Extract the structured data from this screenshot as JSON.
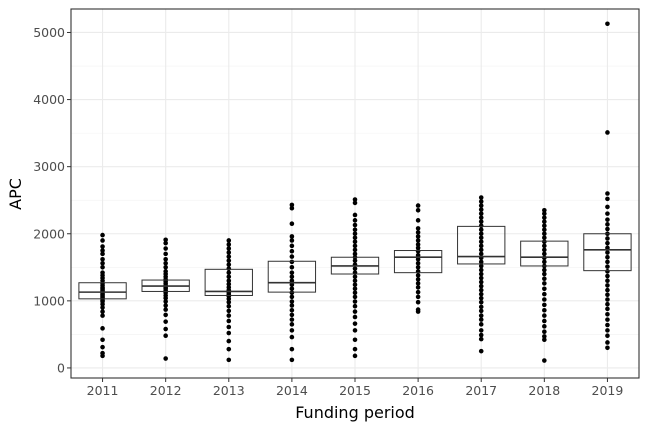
{
  "chart_data": {
    "type": "boxplot",
    "title": "",
    "xlabel": "Funding period",
    "ylabel": "APC",
    "ylim": [
      -150,
      5350
    ],
    "yticks": [
      0,
      1000,
      2000,
      3000,
      4000,
      5000
    ],
    "grid": true,
    "legend": "none",
    "categories": [
      "2011",
      "2012",
      "2013",
      "2014",
      "2015",
      "2016",
      "2017",
      "2018",
      "2019"
    ],
    "boxes": [
      {
        "q1": 1030,
        "median": 1130,
        "q3": 1270
      },
      {
        "q1": 1140,
        "median": 1220,
        "q3": 1310
      },
      {
        "q1": 1080,
        "median": 1140,
        "q3": 1470
      },
      {
        "q1": 1130,
        "median": 1270,
        "q3": 1590
      },
      {
        "q1": 1400,
        "median": 1520,
        "q3": 1650
      },
      {
        "q1": 1420,
        "median": 1650,
        "q3": 1750
      },
      {
        "q1": 1550,
        "median": 1660,
        "q3": 2110
      },
      {
        "q1": 1520,
        "median": 1650,
        "q3": 1890
      },
      {
        "q1": 1450,
        "median": 1760,
        "q3": 2000
      }
    ],
    "points": [
      [
        180,
        220,
        310,
        420,
        590,
        780,
        840,
        900,
        950,
        990,
        1010,
        1040,
        1060,
        1080,
        1100,
        1120,
        1140,
        1160,
        1180,
        1200,
        1230,
        1260,
        1300,
        1340,
        1380,
        1420,
        1500,
        1560,
        1620,
        1700,
        1750,
        1810,
        1900,
        1980
      ],
      [
        140,
        480,
        580,
        690,
        790,
        870,
        930,
        990,
        1040,
        1080,
        1120,
        1150,
        1180,
        1200,
        1230,
        1260,
        1290,
        1320,
        1360,
        1400,
        1440,
        1500,
        1560,
        1620,
        1700,
        1780,
        1860,
        1910
      ],
      [
        120,
        280,
        400,
        520,
        610,
        700,
        780,
        850,
        920,
        980,
        1030,
        1070,
        1100,
        1130,
        1160,
        1200,
        1250,
        1300,
        1360,
        1420,
        1480,
        1540,
        1600,
        1660,
        1720,
        1780,
        1840,
        1900
      ],
      [
        120,
        280,
        460,
        560,
        650,
        720,
        790,
        860,
        930,
        990,
        1060,
        1120,
        1180,
        1240,
        1300,
        1360,
        1420,
        1500,
        1580,
        1660,
        1740,
        1820,
        1900,
        1960,
        2150,
        2380,
        2430
      ],
      [
        180,
        280,
        420,
        560,
        660,
        760,
        840,
        920,
        990,
        1060,
        1120,
        1180,
        1240,
        1300,
        1360,
        1420,
        1480,
        1540,
        1600,
        1650,
        1700,
        1760,
        1820,
        1880,
        1940,
        2000,
        2060,
        2130,
        2200,
        2280,
        2460,
        2510
      ],
      [
        840,
        870,
        980,
        1060,
        1130,
        1200,
        1260,
        1320,
        1380,
        1440,
        1500,
        1560,
        1620,
        1680,
        1740,
        1790,
        1840,
        1900,
        1960,
        2020,
        2080,
        2200,
        2350,
        2420
      ],
      [
        250,
        430,
        490,
        560,
        650,
        720,
        780,
        850,
        910,
        980,
        1040,
        1100,
        1160,
        1220,
        1280,
        1340,
        1400,
        1460,
        1520,
        1580,
        1640,
        1700,
        1760,
        1820,
        1880,
        1940,
        2000,
        2060,
        2120,
        2180,
        2240,
        2300,
        2360,
        2420,
        2480,
        2540
      ],
      [
        110,
        420,
        470,
        540,
        620,
        700,
        780,
        860,
        940,
        1020,
        1100,
        1180,
        1260,
        1330,
        1400,
        1460,
        1520,
        1580,
        1640,
        1700,
        1760,
        1820,
        1880,
        1940,
        2000,
        2060,
        2120,
        2180,
        2240,
        2300,
        2350
      ],
      [
        300,
        380,
        480,
        560,
        640,
        720,
        800,
        880,
        950,
        1020,
        1090,
        1160,
        1230,
        1300,
        1370,
        1440,
        1510,
        1580,
        1650,
        1720,
        1790,
        1860,
        1930,
        2000,
        2070,
        2140,
        2210,
        2300,
        2400,
        2520,
        2600,
        3510,
        5130
      ]
    ]
  }
}
